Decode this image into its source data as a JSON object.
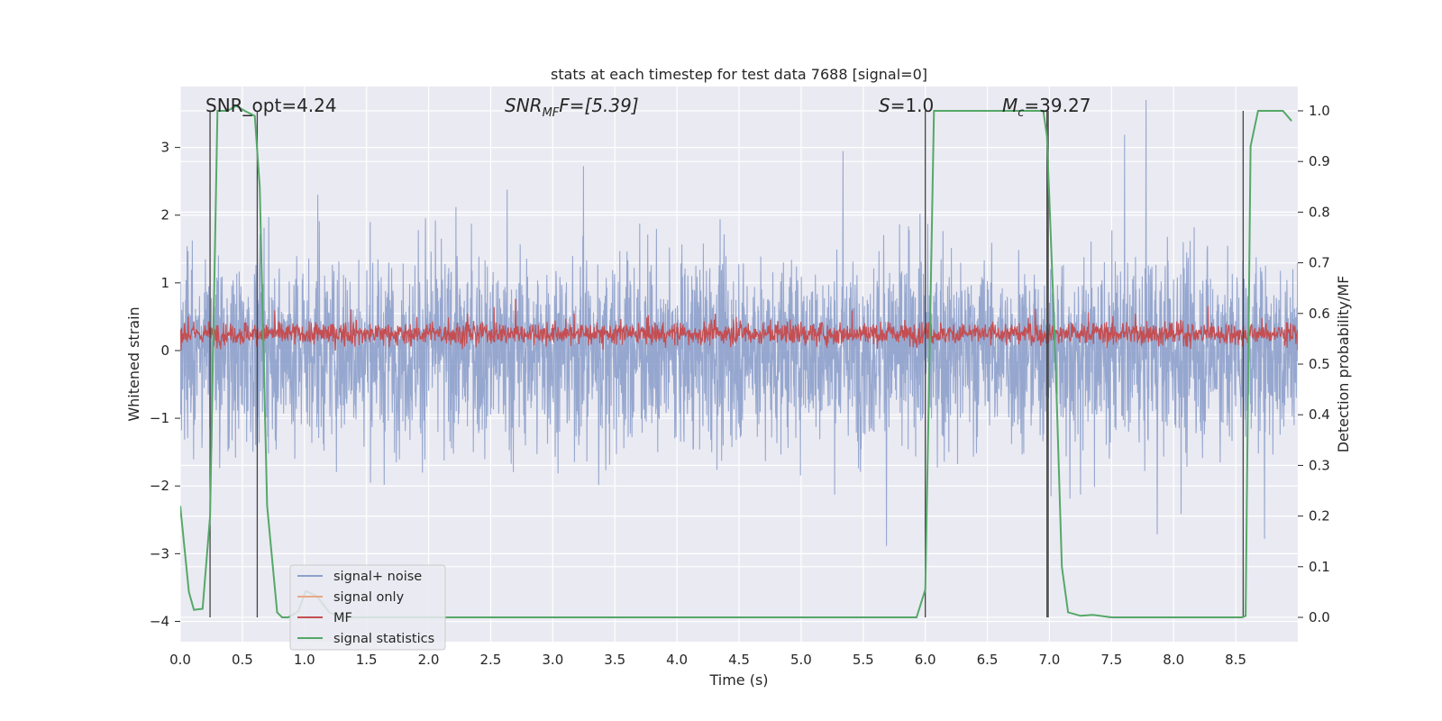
{
  "chart_data": {
    "type": "line",
    "title": "stats at each timestep for test data 7688 [signal=0]",
    "xlabel": "Time (s)",
    "ylabel": "Whitened strain",
    "y2label": "Detection probability/MF",
    "xlim": [
      0,
      9
    ],
    "ylim": [
      -4.3,
      3.9
    ],
    "y2lim": [
      -0.048,
      1.048
    ],
    "x_ticks": [
      "0.0",
      "0.5",
      "1.0",
      "1.5",
      "2.0",
      "2.5",
      "3.0",
      "3.5",
      "4.0",
      "4.5",
      "5.0",
      "5.5",
      "6.0",
      "6.5",
      "7.0",
      "7.5",
      "8.0",
      "8.5"
    ],
    "x_tick_values": [
      0,
      0.5,
      1,
      1.5,
      2,
      2.5,
      3,
      3.5,
      4,
      4.5,
      5,
      5.5,
      6,
      6.5,
      7,
      7.5,
      8,
      8.5
    ],
    "y_ticks": [
      "−4",
      "−3",
      "−2",
      "−1",
      "0",
      "1",
      "2",
      "3"
    ],
    "y_tick_values": [
      -4,
      -3,
      -2,
      -1,
      0,
      1,
      2,
      3
    ],
    "y2_ticks": [
      "0.0",
      "0.1",
      "0.2",
      "0.3",
      "0.4",
      "0.5",
      "0.6",
      "0.7",
      "0.8",
      "0.9",
      "1.0"
    ],
    "y2_tick_values": [
      0,
      0.1,
      0.2,
      0.3,
      0.4,
      0.5,
      0.6,
      0.7,
      0.8,
      0.9,
      1.0
    ],
    "grid": true,
    "legend_position": "lower-left",
    "annotations": {
      "snr_opt": "SNR_opt=4.24",
      "snr_mf_main": "SNR",
      "snr_mf_sub": "MF",
      "snr_mf_tail": "F=[5.39]",
      "s_main": "S",
      "s_tail": "=1.0",
      "mc_main": "M",
      "mc_sub": "c",
      "mc_tail": "=39.27"
    },
    "series": [
      {
        "name": "signal+ noise",
        "color": "#8da0cb"
      },
      {
        "name": "signal only",
        "color": "#e8a987"
      },
      {
        "name": "MF",
        "color": "#c44e52"
      },
      {
        "name": "signal statistics",
        "color": "#55a868",
        "axis": "right",
        "x": [
          0,
          0.07,
          0.11,
          0.18,
          0.24,
          0.3,
          0.38,
          0.45,
          0.52,
          0.6,
          0.64,
          0.7,
          0.78,
          0.82,
          0.87,
          0.95,
          1.01,
          1.1,
          1.2,
          1.3,
          2,
          3,
          4,
          5,
          5.93,
          6.0,
          6.07,
          6.5,
          6.95,
          6.98,
          7.05,
          7.1,
          7.15,
          7.25,
          7.35,
          7.5,
          8,
          8.55,
          8.58,
          8.62,
          8.68,
          8.8,
          8.88,
          8.95
        ],
        "values": [
          0.22,
          0.05,
          0.015,
          0.017,
          0.2,
          1.0,
          1.0,
          1.01,
          1.0,
          0.99,
          0.85,
          0.22,
          0.01,
          0.0,
          0.0,
          0.012,
          0.052,
          0.042,
          0.01,
          0.0,
          0.0,
          0.0,
          0.0,
          0.0,
          0.0,
          0.055,
          1.0,
          1.0,
          1.0,
          0.95,
          0.5,
          0.1,
          0.01,
          0.003,
          0.005,
          0.0,
          0.0,
          0.0,
          0.003,
          0.93,
          1.0,
          1.0,
          1.0,
          0.98
        ]
      }
    ],
    "vertical_markers": [
      0.24,
      0.62,
      6.0,
      6.98,
      6.99,
      8.56
    ]
  }
}
